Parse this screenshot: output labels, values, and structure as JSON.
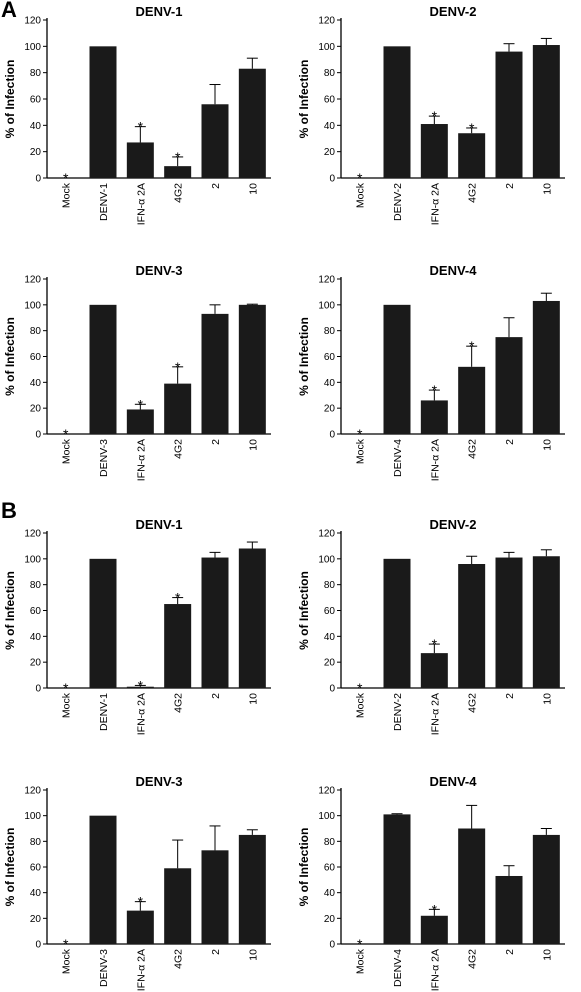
{
  "panels": [
    {
      "letter": "A"
    },
    {
      "letter": "B"
    }
  ],
  "chart_data": [
    {
      "type": "bar",
      "panel": "A",
      "title": "DENV-1",
      "ylabel": "% of Infection",
      "xlabel": "",
      "categories": [
        "Mock",
        "DENV-1",
        "IFN-α 2A",
        "4G2",
        "2",
        "10"
      ],
      "values": [
        0,
        100,
        27,
        9,
        56,
        83
      ],
      "errors": [
        0,
        0,
        12,
        7,
        15,
        8
      ],
      "significant": [
        true,
        false,
        true,
        true,
        false,
        false
      ],
      "yticks": [
        "0",
        "20",
        "40",
        "60",
        "80",
        "100",
        "120"
      ],
      "ylim": [
        0,
        120
      ],
      "grid": false
    },
    {
      "type": "bar",
      "panel": "A",
      "title": "DENV-2",
      "ylabel": "% of Infection",
      "xlabel": "",
      "categories": [
        "Mock",
        "DENV-2",
        "IFN-α 2A",
        "4G2",
        "2",
        "10"
      ],
      "values": [
        0,
        100,
        41,
        34,
        96,
        101
      ],
      "errors": [
        0,
        0,
        6,
        4,
        6,
        5
      ],
      "significant": [
        true,
        false,
        true,
        true,
        false,
        false
      ],
      "yticks": [
        "0",
        "20",
        "40",
        "60",
        "80",
        "100",
        "120"
      ],
      "ylim": [
        0,
        120
      ],
      "grid": false
    },
    {
      "type": "bar",
      "panel": "A",
      "title": "DENV-3",
      "ylabel": "% of Infection",
      "xlabel": "",
      "categories": [
        "Mock",
        "DENV-3",
        "IFN-α 2A",
        "4G2",
        "2",
        "10"
      ],
      "values": [
        0,
        100,
        19,
        39,
        93,
        100
      ],
      "errors": [
        0,
        0,
        4,
        13,
        7,
        0.5
      ],
      "significant": [
        true,
        false,
        true,
        true,
        false,
        false
      ],
      "yticks": [
        "0",
        "20",
        "40",
        "60",
        "80",
        "100",
        "120"
      ],
      "ylim": [
        0,
        120
      ],
      "grid": false
    },
    {
      "type": "bar",
      "panel": "A",
      "title": "DENV-4",
      "ylabel": "% of Infection",
      "xlabel": "",
      "categories": [
        "Mock",
        "DENV-4",
        "IFN-α 2A",
        "4G2",
        "2",
        "10"
      ],
      "values": [
        0,
        100,
        26,
        52,
        75,
        103
      ],
      "errors": [
        0,
        0,
        8,
        16,
        15,
        6
      ],
      "significant": [
        true,
        false,
        true,
        true,
        false,
        false
      ],
      "yticks": [
        "0",
        "20",
        "40",
        "60",
        "80",
        "100",
        "120"
      ],
      "ylim": [
        0,
        120
      ],
      "grid": false
    },
    {
      "type": "bar",
      "panel": "B",
      "title": "DENV-1",
      "ylabel": "% of Infection",
      "xlabel": "",
      "categories": [
        "Mock",
        "DENV-1",
        "IFN-α 2A",
        "4G2",
        "2",
        "10"
      ],
      "values": [
        0,
        100,
        1,
        65,
        101,
        108
      ],
      "errors": [
        0,
        0,
        1,
        5,
        4,
        5
      ],
      "significant": [
        true,
        false,
        true,
        true,
        false,
        false
      ],
      "yticks": [
        "0",
        "20",
        "40",
        "60",
        "80",
        "100",
        "120"
      ],
      "ylim": [
        0,
        120
      ],
      "grid": false
    },
    {
      "type": "bar",
      "panel": "B",
      "title": "DENV-2",
      "ylabel": "% of Infection",
      "xlabel": "",
      "categories": [
        "Mock",
        "DENV-2",
        "IFN-α 2A",
        "4G2",
        "2",
        "10"
      ],
      "values": [
        0,
        100,
        27,
        96,
        101,
        102
      ],
      "errors": [
        0,
        0,
        7,
        6,
        4,
        5
      ],
      "significant": [
        true,
        false,
        true,
        false,
        false,
        false
      ],
      "yticks": [
        "0",
        "20",
        "40",
        "60",
        "80",
        "100",
        "120"
      ],
      "ylim": [
        0,
        120
      ],
      "grid": false
    },
    {
      "type": "bar",
      "panel": "B",
      "title": "DENV-3",
      "ylabel": "% of Infection",
      "xlabel": "",
      "categories": [
        "Mock",
        "DENV-3",
        "IFN-α 2A",
        "4G2",
        "2",
        "10"
      ],
      "values": [
        0,
        100,
        26,
        59,
        73,
        85
      ],
      "errors": [
        0,
        0,
        7,
        22,
        19,
        4
      ],
      "significant": [
        true,
        false,
        true,
        false,
        false,
        false
      ],
      "yticks": [
        "0",
        "20",
        "40",
        "60",
        "80",
        "100",
        "120"
      ],
      "ylim": [
        0,
        120
      ],
      "grid": false
    },
    {
      "type": "bar",
      "panel": "B",
      "title": "DENV-4",
      "ylabel": "% of Infection",
      "xlabel": "",
      "categories": [
        "Mock",
        "DENV-4",
        "IFN-α 2A",
        "4G2",
        "2",
        "10"
      ],
      "values": [
        0,
        101,
        22,
        90,
        53,
        85
      ],
      "errors": [
        0,
        0.5,
        5,
        18,
        8,
        5
      ],
      "significant": [
        true,
        false,
        true,
        false,
        false,
        false
      ],
      "yticks": [
        "0",
        "20",
        "40",
        "60",
        "80",
        "100",
        "120"
      ],
      "ylim": [
        0,
        120
      ],
      "grid": false
    }
  ]
}
